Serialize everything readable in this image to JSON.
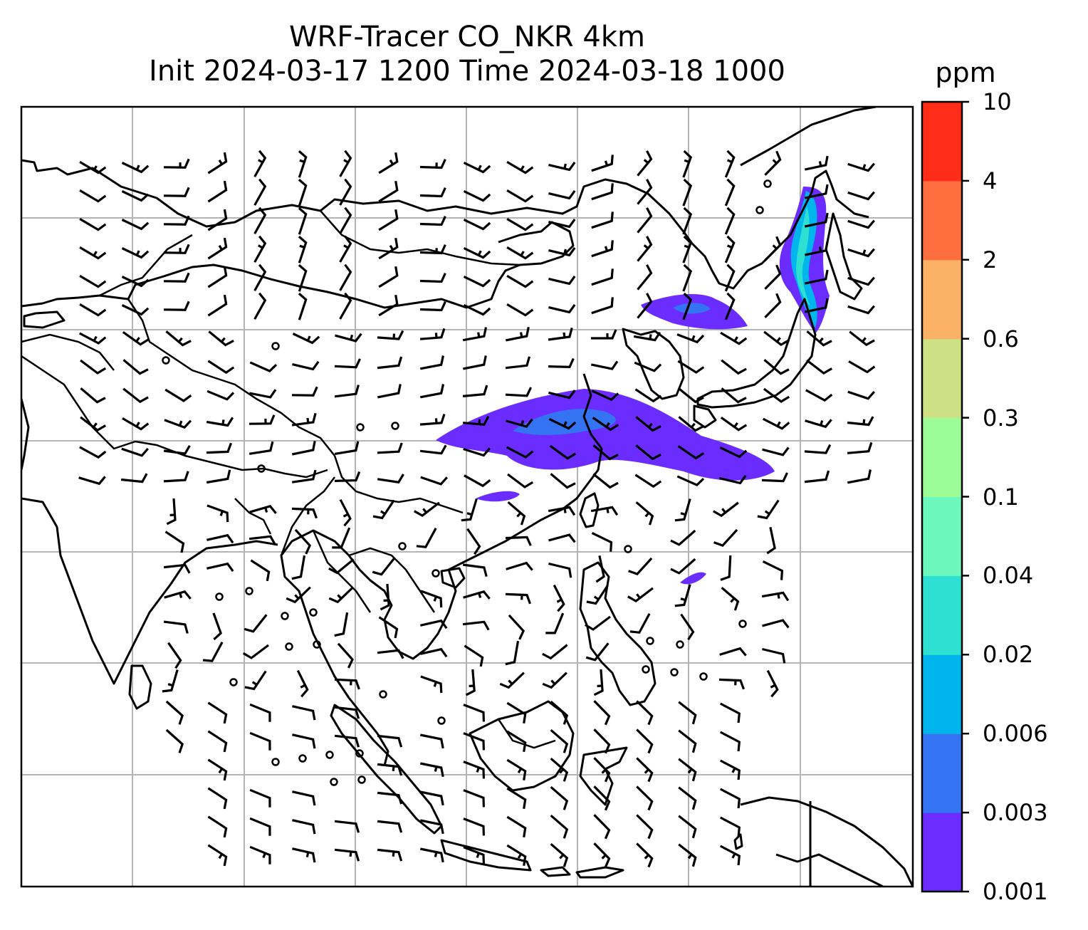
{
  "title": {
    "line1": "WRF-Tracer CO_NKR 4km",
    "line2": "Init 2024-03-17 1200 Time 2024-03-18 1000"
  },
  "colorbar": {
    "unit": "ppm",
    "levels": [
      "0.001",
      "0.003",
      "0.006",
      "0.02",
      "0.04",
      "0.1",
      "0.3",
      "0.6",
      "2",
      "4",
      "10"
    ],
    "colors": [
      "#6a2cff",
      "#3474f2",
      "#00b4ec",
      "#2ee0d2",
      "#6cf8bc",
      "#9cfc98",
      "#cee084",
      "#fcb266",
      "#fe6e3e",
      "#ff2c18"
    ]
  },
  "map": {
    "grid": "on",
    "features": [
      "coastlines",
      "country-borders",
      "wind-barbs",
      "tracer-plume"
    ],
    "plume_color": "#6a2cff",
    "coast_color": "#000000",
    "grid_color": "#b4b4b4"
  }
}
